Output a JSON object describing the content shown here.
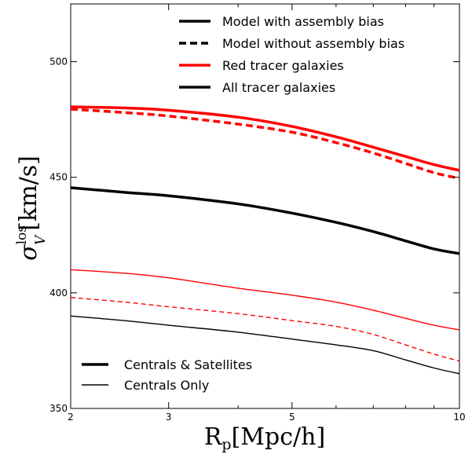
{
  "chart_data": {
    "type": "line",
    "xlabel": {
      "main": "R",
      "sub": "p",
      "rest": "[Mpc/h]"
    },
    "ylabel": {
      "main": "σ",
      "sup": "los",
      "sub": "V",
      "rest": "[km/s]"
    },
    "x_scale": "log",
    "xlim": [
      2,
      10
    ],
    "ylim": [
      350,
      525
    ],
    "x_ticks": [
      2,
      3,
      5,
      10
    ],
    "x_tick_labels": [
      "2",
      "3",
      "5",
      "10"
    ],
    "y_ticks": [
      350,
      400,
      450,
      500
    ],
    "y_tick_labels": [
      "350",
      "400",
      "450",
      "500"
    ],
    "grid": false,
    "legend_top": {
      "placement": "top-right",
      "entries": [
        {
          "label": "Model with assembly bias",
          "color": "#000000",
          "style": "solid"
        },
        {
          "label": "Model without assembly bias",
          "color": "#000000",
          "style": "dashed"
        },
        {
          "label": "Red tracer galaxies",
          "color": "#ff0000",
          "style": "solid"
        },
        {
          "label": "All tracer galaxies",
          "color": "#000000",
          "style": "solid"
        }
      ]
    },
    "legend_bottom": {
      "placement": "bottom-left",
      "entries": [
        {
          "label": "Centrals & Satellites",
          "color": "#000000",
          "style": "thick"
        },
        {
          "label": "Centrals Only",
          "color": "#000000",
          "style": "thin"
        }
      ]
    },
    "series": [
      {
        "color": "#ff0000",
        "style": "solid",
        "weight": "thick",
        "x": [
          2,
          2.5,
          3,
          4,
          5,
          6,
          7,
          8,
          9,
          10
        ],
        "y": [
          480.5,
          480.0,
          479.0,
          476.0,
          472.0,
          467.5,
          463.0,
          459.0,
          455.5,
          453.0
        ]
      },
      {
        "color": "#ff0000",
        "style": "dashed",
        "weight": "thick",
        "x": [
          2,
          2.5,
          3,
          4,
          5,
          6,
          7,
          8,
          9,
          10
        ],
        "y": [
          479.5,
          478.0,
          476.5,
          473.0,
          469.5,
          465.0,
          460.5,
          456.0,
          452.0,
          449.5
        ]
      },
      {
        "color": "#000000",
        "style": "solid",
        "weight": "thick",
        "x": [
          2,
          2.5,
          3,
          4,
          5,
          6,
          7,
          8,
          9,
          10
        ],
        "y": [
          445.5,
          443.5,
          442.0,
          438.5,
          434.5,
          430.5,
          426.5,
          422.5,
          419.0,
          417.0
        ]
      },
      {
        "color": "#ff0000",
        "style": "solid",
        "weight": "thin",
        "x": [
          2,
          2.5,
          3,
          4,
          5,
          6,
          7,
          8,
          9,
          10
        ],
        "y": [
          410.0,
          408.5,
          406.5,
          402.0,
          399.0,
          396.0,
          392.5,
          389.0,
          386.0,
          384.0
        ]
      },
      {
        "color": "#ff0000",
        "style": "dashed",
        "weight": "thin",
        "x": [
          2,
          2.5,
          3,
          4,
          5,
          6,
          7,
          8,
          9,
          10
        ],
        "y": [
          398.0,
          396.0,
          394.0,
          391.0,
          388.0,
          385.5,
          382.0,
          377.5,
          373.5,
          370.5
        ]
      },
      {
        "color": "#000000",
        "style": "solid",
        "weight": "thin",
        "x": [
          2,
          2.5,
          3,
          4,
          5,
          6,
          7,
          8,
          9,
          10
        ],
        "y": [
          390.0,
          388.0,
          386.0,
          383.0,
          380.0,
          377.5,
          375.0,
          371.0,
          367.5,
          365.0
        ]
      }
    ]
  }
}
